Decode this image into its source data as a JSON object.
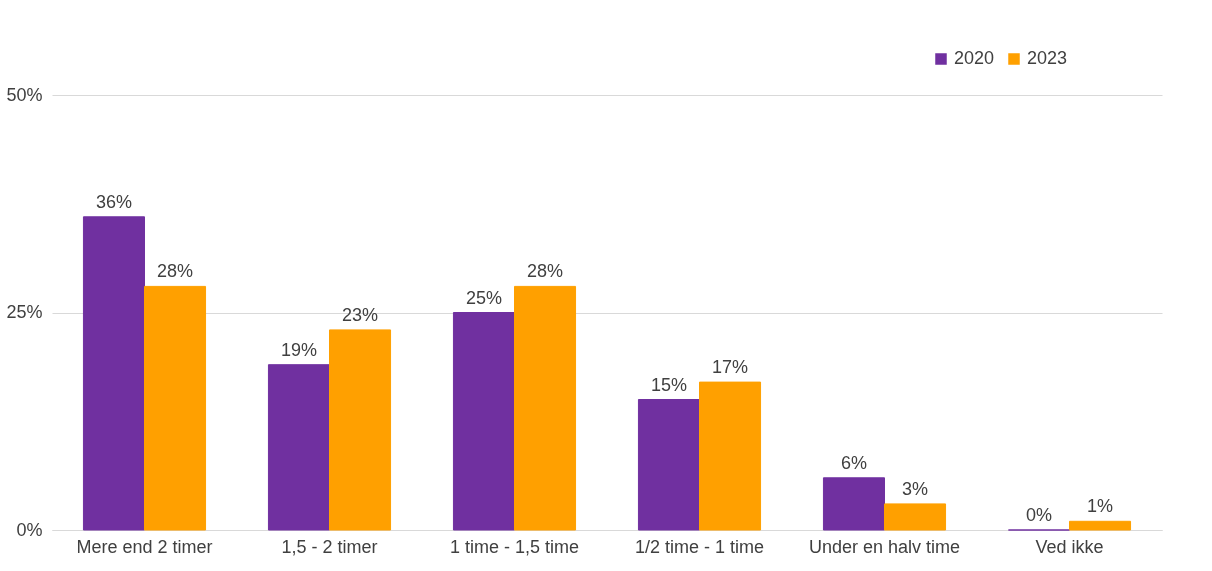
{
  "chart_data": {
    "type": "bar",
    "categories": [
      "Mere end 2 timer",
      "1,5 - 2 timer",
      "1 time - 1,5 time",
      "1/2 time - 1 time",
      "Under en halv time",
      "Ved ikke"
    ],
    "series": [
      {
        "name": "2020",
        "color": "#7030a0",
        "values": [
          36,
          19,
          25,
          15,
          6,
          0
        ],
        "value_labels": [
          "36%",
          "19%",
          "25%",
          "15%",
          "6%",
          "0%"
        ]
      },
      {
        "name": "2023",
        "color": "#ffa000",
        "values": [
          28,
          23,
          28,
          17,
          3,
          1
        ],
        "value_labels": [
          "28%",
          "23%",
          "28%",
          "17%",
          "3%",
          "1%"
        ]
      }
    ],
    "ylim": [
      0,
      50
    ],
    "yticks": [
      {
        "value": 0,
        "label": "0%"
      },
      {
        "value": 25,
        "label": "25%"
      },
      {
        "value": 50,
        "label": "50%"
      }
    ],
    "grid": "y",
    "legend": "top right"
  }
}
